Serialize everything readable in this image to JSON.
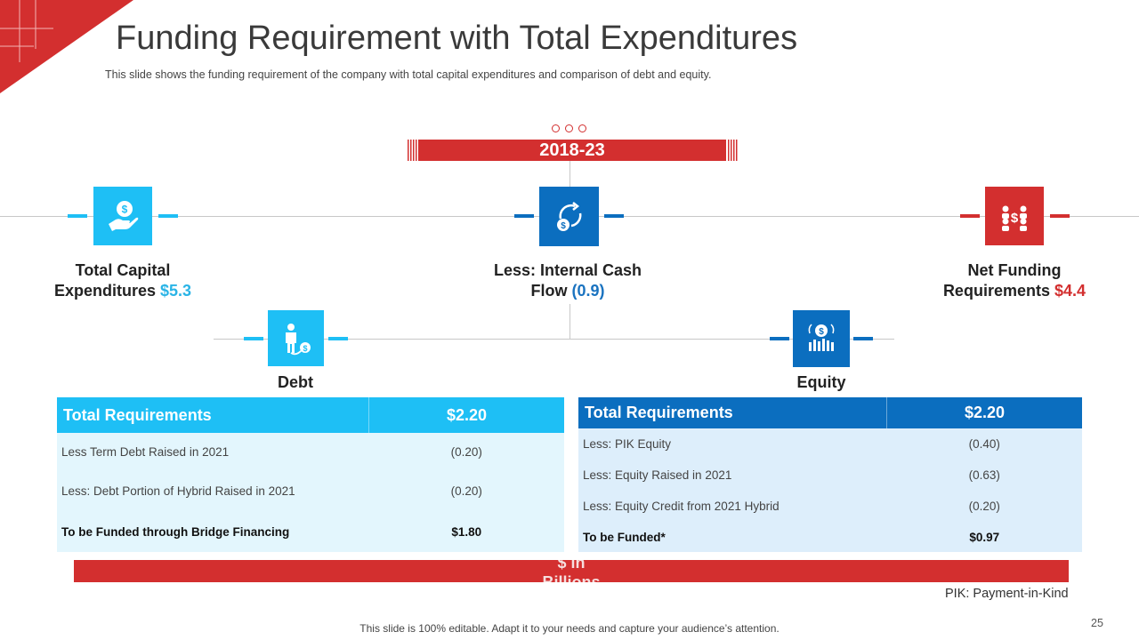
{
  "slide": {
    "title": "Funding Requirement with Total Expenditures",
    "subtitle": "This slide shows the funding requirement of the company with total capital expenditures and comparison of debt and equity.",
    "period": "2018-23",
    "footer": "This slide is 100% editable. Adapt it to your needs and capture your audience’s attention.",
    "page_number": "25",
    "unit_label": "$ in Billions",
    "pik_note": "PIK: Payment-in-Kind"
  },
  "metrics": {
    "capex": {
      "line1": "Total Capital",
      "line2": "Expenditures",
      "value": "$5.3",
      "icon": "money-hand-icon"
    },
    "internal_cash": {
      "line1": "Less: Internal Cash",
      "line2": "Flow",
      "value": "(0.9)",
      "icon": "cash-flow-cycle-icon"
    },
    "net_funding": {
      "line1": "Net Funding",
      "line2": "Requirements",
      "value": "$4.4",
      "icon": "people-dollar-icon"
    }
  },
  "debt": {
    "label": "Debt",
    "icon": "person-coin-icon",
    "header_label": "Total Requirements",
    "header_value": "$2.20",
    "rows": [
      {
        "label": "Less Term Debt Raised in 2021",
        "value": "(0.20)"
      },
      {
        "label": "Less: Debt Portion of Hybrid Raised in 2021",
        "value": "(0.20)"
      }
    ],
    "total_label": "To be Funded through Bridge Financing",
    "total_value": "$1.80"
  },
  "equity": {
    "label": "Equity",
    "icon": "dollar-chart-icon",
    "header_label": "Total Requirements",
    "header_value": "$2.20",
    "rows": [
      {
        "label": "Less: PIK Equity",
        "value": "(0.40)"
      },
      {
        "label": "Less: Equity Raised in 2021",
        "value": "(0.63)"
      },
      {
        "label": "Less: Equity Credit from 2021 Hybrid",
        "value": "(0.20)"
      }
    ],
    "total_label": "To be Funded*",
    "total_value": "$0.97"
  },
  "colors": {
    "red": "#d32f2f",
    "cyan": "#1ebff5",
    "blue": "#0b6ebf",
    "cyan_light": "#e3f6fd",
    "blue_light": "#ddeefb"
  }
}
